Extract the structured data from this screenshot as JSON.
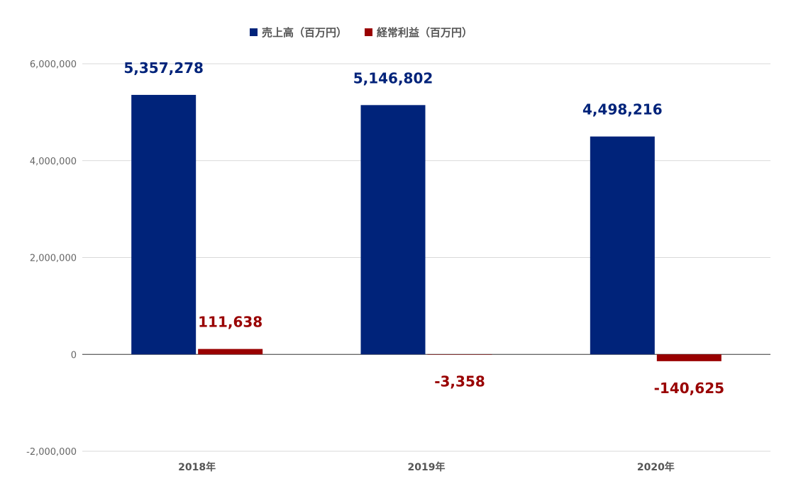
{
  "chart_data": {
    "type": "bar",
    "categories": [
      "2018年",
      "2019年",
      "2020年"
    ],
    "series": [
      {
        "name": "売上高（百万円）",
        "color": "#00237a",
        "values": [
          5357278,
          5146802,
          4498216
        ],
        "labels": [
          "5,357,278",
          "5,146,802",
          "4,498,216"
        ]
      },
      {
        "name": "経常利益（百万円）",
        "color": "#990000",
        "values": [
          111638,
          -3358,
          -140625
        ],
        "labels": [
          "111,638",
          "-3,358",
          "-140,625"
        ]
      }
    ],
    "ylim": [
      -2000000,
      6000000
    ],
    "yticks": [
      6000000,
      4000000,
      2000000,
      0,
      -2000000
    ],
    "ytick_labels": [
      "6,000,000",
      "4,000,000",
      "2,000,000",
      "0",
      "-2,000,000"
    ],
    "grid": true,
    "legend_position": "top-center",
    "title": "",
    "xlabel": "",
    "ylabel": ""
  }
}
